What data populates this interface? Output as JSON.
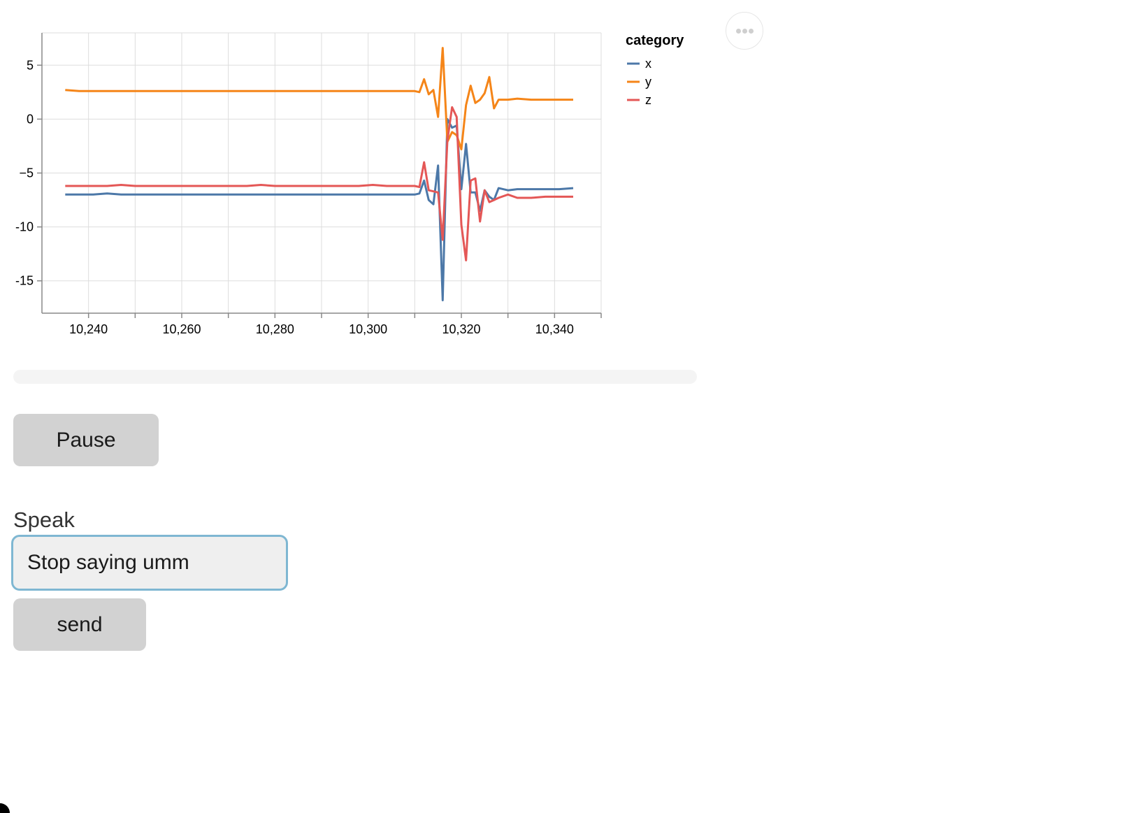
{
  "chart_data": {
    "type": "line",
    "title": "",
    "xlabel": "",
    "ylabel": "",
    "xlim": [
      10230,
      10350
    ],
    "ylim": [
      -18,
      8
    ],
    "xticks": [
      10240,
      10250,
      10260,
      10270,
      10280,
      10290,
      10300,
      10310,
      10320,
      10330,
      10340,
      10350
    ],
    "xtick_labels": [
      "10,240",
      "10,260",
      "10,280",
      "10,300",
      "10,320",
      "10,340"
    ],
    "xtick_label_values": [
      10240,
      10260,
      10280,
      10300,
      10320,
      10340
    ],
    "yticks": [
      5,
      0,
      -5,
      -10,
      -15
    ],
    "ytick_labels": [
      "5",
      "0",
      "−5",
      "-10",
      "-15"
    ],
    "grid": true,
    "legend": {
      "title": "category",
      "placement": "right"
    },
    "series": [
      {
        "name": "x",
        "color": "#4c78a8",
        "points": [
          [
            10235,
            -7.0
          ],
          [
            10238,
            -7.0
          ],
          [
            10241,
            -7.0
          ],
          [
            10244,
            -6.9
          ],
          [
            10247,
            -7.0
          ],
          [
            10250,
            -7.0
          ],
          [
            10253,
            -7.0
          ],
          [
            10256,
            -7.0
          ],
          [
            10259,
            -7.0
          ],
          [
            10262,
            -7.0
          ],
          [
            10265,
            -7.0
          ],
          [
            10268,
            -7.0
          ],
          [
            10271,
            -7.0
          ],
          [
            10274,
            -7.0
          ],
          [
            10277,
            -7.0
          ],
          [
            10280,
            -7.0
          ],
          [
            10283,
            -7.0
          ],
          [
            10286,
            -7.0
          ],
          [
            10289,
            -7.0
          ],
          [
            10292,
            -7.0
          ],
          [
            10295,
            -7.0
          ],
          [
            10298,
            -7.0
          ],
          [
            10301,
            -7.0
          ],
          [
            10304,
            -7.0
          ],
          [
            10307,
            -7.0
          ],
          [
            10310,
            -7.0
          ],
          [
            10311,
            -6.9
          ],
          [
            10312,
            -5.7
          ],
          [
            10313,
            -7.5
          ],
          [
            10314,
            -7.9
          ],
          [
            10315,
            -4.3
          ],
          [
            10316,
            -16.8
          ],
          [
            10317,
            0.0
          ],
          [
            10318,
            -0.8
          ],
          [
            10319,
            -0.6
          ],
          [
            10320,
            -6.5
          ],
          [
            10321,
            -2.3
          ],
          [
            10322,
            -6.8
          ],
          [
            10323,
            -6.8
          ],
          [
            10324,
            -8.5
          ],
          [
            10325,
            -6.6
          ],
          [
            10326,
            -7.2
          ],
          [
            10327,
            -7.5
          ],
          [
            10328,
            -6.4
          ],
          [
            10330,
            -6.6
          ],
          [
            10332,
            -6.5
          ],
          [
            10335,
            -6.5
          ],
          [
            10338,
            -6.5
          ],
          [
            10341,
            -6.5
          ],
          [
            10344,
            -6.4
          ]
        ]
      },
      {
        "name": "y",
        "color": "#f58518",
        "points": [
          [
            10235,
            2.7
          ],
          [
            10238,
            2.6
          ],
          [
            10241,
            2.6
          ],
          [
            10244,
            2.6
          ],
          [
            10247,
            2.6
          ],
          [
            10250,
            2.6
          ],
          [
            10253,
            2.6
          ],
          [
            10256,
            2.6
          ],
          [
            10259,
            2.6
          ],
          [
            10262,
            2.6
          ],
          [
            10265,
            2.6
          ],
          [
            10268,
            2.6
          ],
          [
            10271,
            2.6
          ],
          [
            10274,
            2.6
          ],
          [
            10277,
            2.6
          ],
          [
            10280,
            2.6
          ],
          [
            10283,
            2.6
          ],
          [
            10286,
            2.6
          ],
          [
            10289,
            2.6
          ],
          [
            10292,
            2.6
          ],
          [
            10295,
            2.6
          ],
          [
            10298,
            2.6
          ],
          [
            10301,
            2.6
          ],
          [
            10304,
            2.6
          ],
          [
            10307,
            2.6
          ],
          [
            10310,
            2.6
          ],
          [
            10311,
            2.5
          ],
          [
            10312,
            3.7
          ],
          [
            10313,
            2.3
          ],
          [
            10314,
            2.7
          ],
          [
            10315,
            0.2
          ],
          [
            10316,
            6.6
          ],
          [
            10317,
            -2.1
          ],
          [
            10318,
            -1.2
          ],
          [
            10319,
            -1.5
          ],
          [
            10320,
            -2.8
          ],
          [
            10321,
            1.3
          ],
          [
            10322,
            3.1
          ],
          [
            10323,
            1.5
          ],
          [
            10324,
            1.8
          ],
          [
            10325,
            2.4
          ],
          [
            10326,
            3.9
          ],
          [
            10327,
            1.0
          ],
          [
            10328,
            1.8
          ],
          [
            10330,
            1.8
          ],
          [
            10332,
            1.9
          ],
          [
            10335,
            1.8
          ],
          [
            10338,
            1.8
          ],
          [
            10341,
            1.8
          ],
          [
            10344,
            1.8
          ]
        ]
      },
      {
        "name": "z",
        "color": "#e45756",
        "points": [
          [
            10235,
            -6.2
          ],
          [
            10238,
            -6.2
          ],
          [
            10241,
            -6.2
          ],
          [
            10244,
            -6.2
          ],
          [
            10247,
            -6.1
          ],
          [
            10250,
            -6.2
          ],
          [
            10253,
            -6.2
          ],
          [
            10256,
            -6.2
          ],
          [
            10259,
            -6.2
          ],
          [
            10262,
            -6.2
          ],
          [
            10265,
            -6.2
          ],
          [
            10268,
            -6.2
          ],
          [
            10271,
            -6.2
          ],
          [
            10274,
            -6.2
          ],
          [
            10277,
            -6.1
          ],
          [
            10280,
            -6.2
          ],
          [
            10283,
            -6.2
          ],
          [
            10286,
            -6.2
          ],
          [
            10289,
            -6.2
          ],
          [
            10292,
            -6.2
          ],
          [
            10295,
            -6.2
          ],
          [
            10298,
            -6.2
          ],
          [
            10301,
            -6.1
          ],
          [
            10304,
            -6.2
          ],
          [
            10307,
            -6.2
          ],
          [
            10310,
            -6.2
          ],
          [
            10311,
            -6.3
          ],
          [
            10312,
            -4.0
          ],
          [
            10313,
            -6.6
          ],
          [
            10314,
            -6.7
          ],
          [
            10315,
            -6.8
          ],
          [
            10316,
            -11.2
          ],
          [
            10317,
            -2.0
          ],
          [
            10318,
            1.1
          ],
          [
            10319,
            0.2
          ],
          [
            10320,
            -9.8
          ],
          [
            10321,
            -13.1
          ],
          [
            10322,
            -5.7
          ],
          [
            10323,
            -5.5
          ],
          [
            10324,
            -9.5
          ],
          [
            10325,
            -6.6
          ],
          [
            10326,
            -7.7
          ],
          [
            10327,
            -7.5
          ],
          [
            10328,
            -7.3
          ],
          [
            10330,
            -7.0
          ],
          [
            10332,
            -7.3
          ],
          [
            10335,
            -7.3
          ],
          [
            10338,
            -7.2
          ],
          [
            10341,
            -7.2
          ],
          [
            10344,
            -7.2
          ]
        ]
      }
    ]
  },
  "controls": {
    "menu_icon": "more-horizontal-icon",
    "progress": {
      "fraction": 0.0
    },
    "pause_label": "Pause",
    "speak_label": "Speak",
    "speak_value": "Stop saying umm",
    "send_label": "send"
  }
}
